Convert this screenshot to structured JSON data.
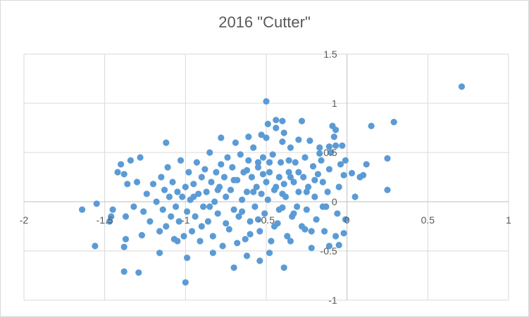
{
  "chart_data": {
    "type": "scatter",
    "title": "2016 \"Cutter\"",
    "xlabel": "",
    "ylabel": "",
    "xlim": [
      -2,
      1
    ],
    "ylim": [
      -1,
      1.5
    ],
    "x_ticks": [
      "-2",
      "-1.5",
      "-1",
      "-0.5",
      "0",
      "0.5",
      "1"
    ],
    "y_ticks": [
      "1.5",
      "1",
      "0.5",
      "0",
      "-0.5",
      "-1"
    ],
    "grid": true,
    "legend": "none",
    "series": [
      {
        "color": "#5b9bd5",
        "points": [
          [
            0.71,
            1.17
          ],
          [
            0.29,
            0.81
          ],
          [
            0.15,
            0.77
          ],
          [
            0.25,
            0.44
          ],
          [
            0.25,
            0.12
          ],
          [
            0.12,
            0.38
          ],
          [
            0.1,
            0.27
          ],
          [
            0.08,
            0.25
          ],
          [
            0.03,
            0.29
          ],
          [
            0.05,
            0.05
          ],
          [
            -0.01,
            0.42
          ],
          [
            -0.02,
            0.27
          ],
          [
            -0.01,
            -0.18
          ],
          [
            -0.02,
            -0.32
          ],
          [
            -0.03,
            0.57
          ],
          [
            -0.04,
            0.38
          ],
          [
            -0.05,
            0.15
          ],
          [
            -0.06,
            -0.12
          ],
          [
            -0.07,
            0.73
          ],
          [
            -0.09,
            0.77
          ],
          [
            -0.08,
            0.66
          ],
          [
            -0.1,
            0.5
          ],
          [
            -0.11,
            0.33
          ],
          [
            -0.12,
            0.1
          ],
          [
            -0.13,
            -0.05
          ],
          [
            -0.15,
            0.2
          ],
          [
            -0.16,
            0.42
          ],
          [
            -0.17,
            0.55
          ],
          [
            -0.18,
            0.28
          ],
          [
            -0.19,
            -0.18
          ],
          [
            -0.2,
            0.05
          ],
          [
            -0.21,
            0.36
          ],
          [
            -0.22,
            -0.3
          ],
          [
            -0.23,
            0.62
          ],
          [
            -0.24,
            0.15
          ],
          [
            -0.25,
            -0.08
          ],
          [
            -0.26,
            0.45
          ],
          [
            -0.27,
            0.25
          ],
          [
            -0.28,
            -0.25
          ],
          [
            -0.3,
            0.63
          ],
          [
            -0.3,
            0.1
          ],
          [
            -0.31,
            -0.05
          ],
          [
            -0.32,
            0.4
          ],
          [
            -0.33,
            0.2
          ],
          [
            -0.34,
            -0.15
          ],
          [
            -0.35,
            0.55
          ],
          [
            -0.36,
            0.3
          ],
          [
            -0.37,
            -0.35
          ],
          [
            -0.38,
            0.05
          ],
          [
            -0.39,
            0.18
          ],
          [
            -0.4,
            0.61
          ],
          [
            -0.4,
            -0.06
          ],
          [
            -0.41,
            0.4
          ],
          [
            -0.42,
            0.25
          ],
          [
            -0.43,
            -0.22
          ],
          [
            -0.44,
            0.75
          ],
          [
            -0.45,
            0.12
          ],
          [
            -0.46,
            0.48
          ],
          [
            -0.47,
            -0.4
          ],
          [
            -0.48,
            0.3
          ],
          [
            -0.49,
            0.02
          ],
          [
            -0.5,
            0.65
          ],
          [
            -0.5,
            0.2
          ],
          [
            -0.51,
            -0.12
          ],
          [
            -0.52,
            0.45
          ],
          [
            -0.53,
            0.08
          ],
          [
            -0.54,
            -0.3
          ],
          [
            -0.55,
            0.35
          ],
          [
            -0.56,
            0.15
          ],
          [
            -0.57,
            -0.05
          ],
          [
            -0.58,
            0.55
          ],
          [
            -0.59,
            0.25
          ],
          [
            -0.6,
            -0.2
          ],
          [
            -0.61,
            0.42
          ],
          [
            -0.62,
            0.1
          ],
          [
            -0.63,
            -0.38
          ],
          [
            -0.64,
            0.3
          ],
          [
            -0.65,
            0.02
          ],
          [
            -0.66,
            0.48
          ],
          [
            -0.67,
            -0.15
          ],
          [
            -0.68,
            0.22
          ],
          [
            -0.69,
            0.6
          ],
          [
            -0.7,
            -0.08
          ],
          [
            -0.71,
            0.35
          ],
          [
            -0.72,
            0.12
          ],
          [
            -0.73,
            -0.28
          ],
          [
            -0.74,
            0.45
          ],
          [
            -0.75,
            0.05
          ],
          [
            -0.76,
            0.25
          ],
          [
            -0.77,
            -0.45
          ],
          [
            -0.78,
            0.38
          ],
          [
            -0.79,
            0.15
          ],
          [
            -0.8,
            -0.12
          ],
          [
            -0.81,
            0.3
          ],
          [
            -0.82,
            0.0
          ],
          [
            -0.83,
            -0.35
          ],
          [
            -0.84,
            0.2
          ],
          [
            -0.85,
            0.5
          ],
          [
            -0.86,
            -0.2
          ],
          [
            -0.87,
            0.1
          ],
          [
            -0.88,
            0.33
          ],
          [
            -0.89,
            -0.05
          ],
          [
            -0.9,
            0.25
          ],
          [
            -0.91,
            -0.4
          ],
          [
            -0.92,
            0.08
          ],
          [
            -0.93,
            0.4
          ],
          [
            -0.94,
            -0.15
          ],
          [
            -0.95,
            0.18
          ],
          [
            -0.96,
            -0.3
          ],
          [
            -0.97,
            0.02
          ],
          [
            -0.98,
            0.3
          ],
          [
            -0.99,
            -0.1
          ],
          [
            -1.0,
            0.15
          ],
          [
            -1.01,
            -0.35
          ],
          [
            -1.02,
            0.05
          ],
          [
            -1.03,
            0.42
          ],
          [
            -1.04,
            -0.2
          ],
          [
            -1.05,
            0.1
          ],
          [
            -1.06,
            -0.05
          ],
          [
            -1.07,
            -0.38
          ],
          [
            -1.08,
            0.2
          ],
          [
            -1.09,
            -0.15
          ],
          [
            -1.1,
            0.05
          ],
          [
            -1.11,
            0.35
          ],
          [
            -1.12,
            -0.25
          ],
          [
            -1.13,
            0.12
          ],
          [
            -1.14,
            -0.08
          ],
          [
            -1.15,
            0.25
          ],
          [
            -1.16,
            -0.3
          ],
          [
            -1.18,
            0.0
          ],
          [
            -1.2,
            0.18
          ],
          [
            -1.22,
            -0.2
          ],
          [
            -1.24,
            0.08
          ],
          [
            -1.26,
            -0.1
          ],
          [
            -1.28,
            0.45
          ],
          [
            -1.3,
            0.2
          ],
          [
            -1.32,
            -0.05
          ],
          [
            -1.34,
            0.42
          ],
          [
            -1.36,
            0.18
          ],
          [
            -1.37,
            -0.15
          ],
          [
            -1.38,
            0.28
          ],
          [
            -1.4,
            0.38
          ],
          [
            -1.42,
            0.3
          ],
          [
            -1.45,
            -0.08
          ],
          [
            -1.46,
            -0.15
          ],
          [
            -1.47,
            -0.2
          ],
          [
            -1.55,
            -0.02
          ],
          [
            -1.64,
            -0.08
          ],
          [
            -1.56,
            -0.45
          ],
          [
            -1.37,
            -0.38
          ],
          [
            -1.38,
            -0.46
          ],
          [
            -1.38,
            -0.71
          ],
          [
            -1.29,
            -0.72
          ],
          [
            -1.0,
            -0.82
          ],
          [
            -0.7,
            -0.67
          ],
          [
            -0.39,
            -0.67
          ],
          [
            -0.54,
            -0.6
          ],
          [
            -0.99,
            -0.57
          ],
          [
            -0.62,
            -0.55
          ],
          [
            -0.48,
            -0.52
          ],
          [
            -0.5,
            1.02
          ],
          [
            -0.49,
            0.79
          ],
          [
            -0.44,
            0.83
          ],
          [
            -0.4,
            0.82
          ],
          [
            -0.28,
            0.82
          ],
          [
            -0.39,
            0.7
          ],
          [
            -0.53,
            0.68
          ],
          [
            -0.61,
            0.66
          ],
          [
            -0.78,
            0.65
          ],
          [
            -1.12,
            0.6
          ],
          [
            -0.07,
            0.57
          ],
          [
            -0.11,
            0.56
          ],
          [
            -0.17,
            0.49
          ],
          [
            -0.36,
            0.42
          ],
          [
            -0.55,
            0.4
          ],
          [
            -0.05,
            -0.44
          ],
          [
            -0.11,
            -0.45
          ],
          [
            -0.22,
            -0.47
          ],
          [
            -0.35,
            -0.4
          ],
          [
            -0.68,
            -0.42
          ],
          [
            -0.83,
            -0.52
          ],
          [
            -1.05,
            -0.4
          ],
          [
            -1.16,
            -0.52
          ],
          [
            -1.27,
            -0.34
          ],
          [
            -0.26,
            -0.28
          ],
          [
            -0.14,
            -0.3
          ],
          [
            -0.07,
            -0.35
          ],
          [
            -0.45,
            -0.25
          ],
          [
            -0.9,
            -0.25
          ],
          [
            -0.6,
            -0.33
          ],
          [
            -0.75,
            -0.22
          ],
          [
            -0.55,
            -0.18
          ],
          [
            -0.65,
            -0.1
          ],
          [
            -0.85,
            -0.05
          ],
          [
            -0.95,
            0.05
          ],
          [
            -0.52,
            0.28
          ],
          [
            -0.58,
            0.1
          ],
          [
            -0.44,
            0.15
          ],
          [
            -0.62,
            0.32
          ],
          [
            -0.35,
            0.25
          ],
          [
            -0.48,
            0.4
          ],
          [
            -0.7,
            0.22
          ],
          [
            -0.8,
            0.12
          ],
          [
            -0.4,
            0.08
          ],
          [
            -0.3,
            0.3
          ],
          [
            -0.25,
            0.1
          ],
          [
            -0.2,
            0.22
          ],
          [
            -0.15,
            -0.05
          ],
          [
            -0.33,
            -0.12
          ],
          [
            -0.42,
            -0.08
          ]
        ]
      }
    ]
  }
}
